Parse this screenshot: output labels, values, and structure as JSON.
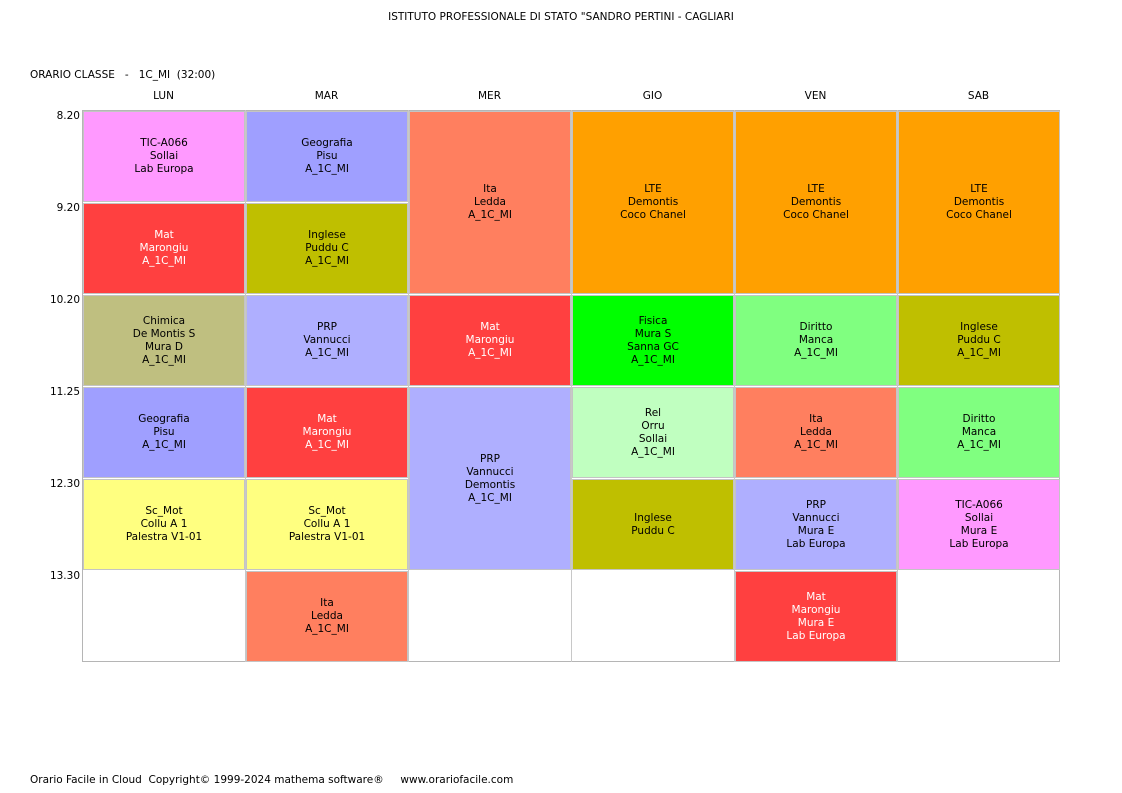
{
  "header": {
    "school": "ISTITUTO PROFESSIONALE DI STATO \"SANDRO PERTINI - CAGLIARI",
    "class_info": "ORARIO CLASSE   -   1C_MI  (32:00)"
  },
  "days": [
    "LUN",
    "MAR",
    "MER",
    "GIO",
    "VEN",
    "SAB"
  ],
  "times": [
    "8.20",
    "9.20",
    "10.20",
    "11.25",
    "12.30",
    "13.30"
  ],
  "lessons": [
    {
      "day": 0,
      "start": 0,
      "span": 1,
      "color": "#ff99ff",
      "text_color": "#000000",
      "lines": [
        "TIC-A066",
        "Sollai",
        "Lab Europa"
      ]
    },
    {
      "day": 0,
      "start": 1,
      "span": 1,
      "color": "#ff4040",
      "text_color": "#ffffff",
      "lines": [
        "Mat",
        "Marongiu",
        "A_1C_MI"
      ]
    },
    {
      "day": 0,
      "start": 2,
      "span": 1,
      "color": "#bfbf80",
      "text_color": "#000000",
      "lines": [
        "Chimica",
        "De Montis S",
        "Mura D",
        "A_1C_MI"
      ]
    },
    {
      "day": 0,
      "start": 3,
      "span": 1,
      "color": "#9f9fff",
      "text_color": "#000000",
      "lines": [
        "Geografia",
        "Pisu",
        "A_1C_MI"
      ]
    },
    {
      "day": 0,
      "start": 4,
      "span": 1,
      "color": "#ffff80",
      "text_color": "#000000",
      "lines": [
        "Sc_Mot",
        "Collu A 1",
        "Palestra V1-01"
      ]
    },
    {
      "day": 1,
      "start": 0,
      "span": 1,
      "color": "#9f9fff",
      "text_color": "#000000",
      "lines": [
        "Geografia",
        "Pisu",
        "A_1C_MI"
      ]
    },
    {
      "day": 1,
      "start": 1,
      "span": 1,
      "color": "#bfbf00",
      "text_color": "#000000",
      "lines": [
        "Inglese",
        "Puddu C",
        "A_1C_MI"
      ]
    },
    {
      "day": 1,
      "start": 2,
      "span": 1,
      "color": "#afafff",
      "text_color": "#000000",
      "lines": [
        "PRP",
        "Vannucci",
        "A_1C_MI"
      ]
    },
    {
      "day": 1,
      "start": 3,
      "span": 1,
      "color": "#ff4040",
      "text_color": "#ffffff",
      "lines": [
        "Mat",
        "Marongiu",
        "A_1C_MI"
      ]
    },
    {
      "day": 1,
      "start": 4,
      "span": 1,
      "color": "#ffff80",
      "text_color": "#000000",
      "lines": [
        "Sc_Mot",
        "Collu A 1",
        "Palestra V1-01"
      ]
    },
    {
      "day": 1,
      "start": 5,
      "span": 1,
      "color": "#ff7f5f",
      "text_color": "#000000",
      "lines": [
        "Ita",
        "Ledda",
        "A_1C_MI"
      ]
    },
    {
      "day": 2,
      "start": 0,
      "span": 2,
      "color": "#ff7f5f",
      "text_color": "#000000",
      "lines": [
        "Ita",
        "Ledda",
        "A_1C_MI"
      ]
    },
    {
      "day": 2,
      "start": 2,
      "span": 1,
      "color": "#ff4040",
      "text_color": "#ffffff",
      "lines": [
        "Mat",
        "Marongiu",
        "A_1C_MI"
      ]
    },
    {
      "day": 2,
      "start": 3,
      "span": 2,
      "color": "#afafff",
      "text_color": "#000000",
      "lines": [
        "PRP",
        "Vannucci",
        "Demontis",
        "A_1C_MI"
      ]
    },
    {
      "day": 3,
      "start": 0,
      "span": 2,
      "color": "#ffa000",
      "text_color": "#000000",
      "lines": [
        "LTE",
        "Demontis",
        "Coco Chanel"
      ]
    },
    {
      "day": 3,
      "start": 2,
      "span": 1,
      "color": "#00ff00",
      "text_color": "#000000",
      "lines": [
        "Fisica",
        "Mura S",
        "Sanna GC",
        "A_1C_MI"
      ]
    },
    {
      "day": 3,
      "start": 3,
      "span": 1,
      "color": "#c0ffc0",
      "text_color": "#000000",
      "lines": [
        "Rel",
        "Orru",
        "Sollai",
        "A_1C_MI"
      ]
    },
    {
      "day": 3,
      "start": 4,
      "span": 1,
      "color": "#bfbf00",
      "text_color": "#000000",
      "lines": [
        "Inglese",
        "Puddu C"
      ]
    },
    {
      "day": 4,
      "start": 0,
      "span": 2,
      "color": "#ffa000",
      "text_color": "#000000",
      "lines": [
        "LTE",
        "Demontis",
        "Coco Chanel"
      ]
    },
    {
      "day": 4,
      "start": 2,
      "span": 1,
      "color": "#80ff80",
      "text_color": "#000000",
      "lines": [
        "Diritto",
        "Manca",
        "A_1C_MI"
      ]
    },
    {
      "day": 4,
      "start": 3,
      "span": 1,
      "color": "#ff7f5f",
      "text_color": "#000000",
      "lines": [
        "Ita",
        "Ledda",
        "A_1C_MI"
      ]
    },
    {
      "day": 4,
      "start": 4,
      "span": 1,
      "color": "#afafff",
      "text_color": "#000000",
      "lines": [
        "PRP",
        "Vannucci",
        "Mura E",
        "Lab Europa"
      ]
    },
    {
      "day": 4,
      "start": 5,
      "span": 1,
      "color": "#ff4040",
      "text_color": "#ffffff",
      "lines": [
        "Mat",
        "Marongiu",
        "Mura E",
        "Lab Europa"
      ]
    },
    {
      "day": 5,
      "start": 0,
      "span": 2,
      "color": "#ffa000",
      "text_color": "#000000",
      "lines": [
        "LTE",
        "Demontis",
        "Coco Chanel"
      ]
    },
    {
      "day": 5,
      "start": 2,
      "span": 1,
      "color": "#bfbf00",
      "text_color": "#000000",
      "lines": [
        "Inglese",
        "Puddu C",
        "A_1C_MI"
      ]
    },
    {
      "day": 5,
      "start": 3,
      "span": 1,
      "color": "#80ff80",
      "text_color": "#000000",
      "lines": [
        "Diritto",
        "Manca",
        "A_1C_MI"
      ]
    },
    {
      "day": 5,
      "start": 4,
      "span": 1,
      "color": "#ff99ff",
      "text_color": "#000000",
      "lines": [
        "TIC-A066",
        "Sollai",
        "Mura E",
        "Lab Europa"
      ]
    }
  ],
  "footer": {
    "text": "Orario Facile in Cloud  Copyright© 1999-2024 mathema software®     www.orariofacile.com"
  }
}
